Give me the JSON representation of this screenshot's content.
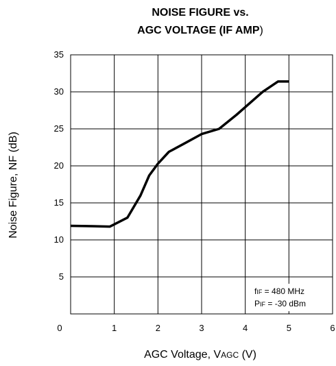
{
  "chart_data": {
    "type": "line",
    "title_line1": "NOISE FIGURE vs.",
    "title_line2_main": "AGC VOLTAGE (IF AMP",
    "title_line2_paren": ")",
    "xlabel_main": "AGC Voltage, V",
    "xlabel_sub": "AGC",
    "xlabel_unit": " (V)",
    "ylabel": "Noise Figure, NF (dB)",
    "xlim": [
      0,
      6
    ],
    "ylim": [
      0,
      35
    ],
    "x_ticks": [
      "0",
      "1",
      "2",
      "3",
      "4",
      "5",
      "6"
    ],
    "y_ticks": [
      "5",
      "10",
      "15",
      "20",
      "25",
      "30",
      "35"
    ],
    "grid": true,
    "series": [
      {
        "color": "#000000",
        "x": [
          0.0,
          0.5,
          0.9,
          1.3,
          1.6,
          1.8,
          2.0,
          2.25,
          2.6,
          3.0,
          3.4,
          3.8,
          4.4,
          4.75,
          5.0
        ],
        "y": [
          11.9,
          11.85,
          11.8,
          13.0,
          16.0,
          18.7,
          20.3,
          21.9,
          23.0,
          24.3,
          25.0,
          26.9,
          30.0,
          31.4,
          31.4
        ]
      }
    ],
    "annotation": {
      "line1_prefix": "f",
      "line1_sub": "IF",
      "line1_rest": " = 480 MHz",
      "line2_prefix": "P",
      "line2_sub": "IF",
      "line2_rest": " = -30 dBm"
    }
  }
}
